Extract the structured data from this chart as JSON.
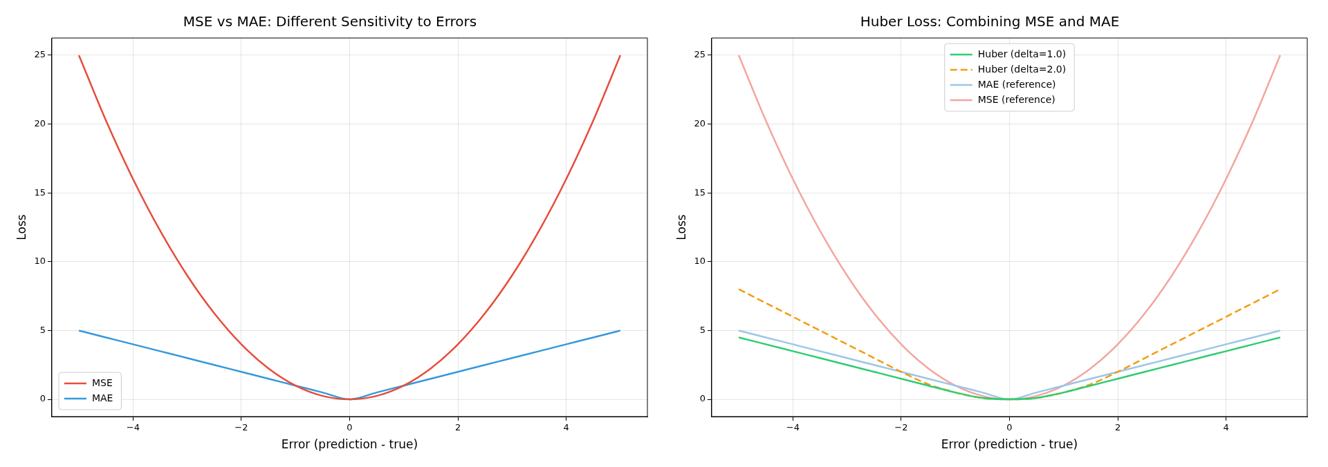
{
  "chart_data": [
    {
      "type": "line",
      "title": "MSE vs MAE: Different Sensitivity to Errors",
      "xlabel": "Error (prediction - true)",
      "ylabel": "Loss",
      "x": [
        -5,
        -4.5,
        -4,
        -3.5,
        -3,
        -2.5,
        -2,
        -1.5,
        -1,
        -0.5,
        0,
        0.5,
        1,
        1.5,
        2,
        2.5,
        3,
        3.5,
        4,
        4.5,
        5
      ],
      "series": [
        {
          "name": "MSE",
          "color": "#e74c3c",
          "values": [
            25,
            20.25,
            16,
            12.25,
            9,
            6.25,
            4,
            2.25,
            1,
            0.25,
            0,
            0.25,
            1,
            2.25,
            4,
            6.25,
            9,
            12.25,
            16,
            20.25,
            25
          ]
        },
        {
          "name": "MAE",
          "color": "#3498db",
          "values": [
            5,
            4.5,
            4,
            3.5,
            3,
            2.5,
            2,
            1.5,
            1,
            0.5,
            0,
            0.5,
            1,
            1.5,
            2,
            2.5,
            3,
            3.5,
            4,
            4.5,
            5
          ]
        }
      ],
      "xlim": [
        -5.5,
        5.5
      ],
      "xticks": [
        -4,
        -2,
        0,
        2,
        4
      ],
      "ylim": [
        -1.25,
        26.25
      ],
      "yticks": [
        0,
        5,
        10,
        15,
        20,
        25
      ],
      "grid": true,
      "legend": "bottom left",
      "marker": "none",
      "line_style": "solid"
    },
    {
      "type": "line",
      "title": "Huber Loss: Combining MSE and MAE",
      "xlabel": "Error (prediction - true)",
      "ylabel": "Loss",
      "x": [
        -5,
        -4.5,
        -4,
        -3.5,
        -3,
        -2.5,
        -2,
        -1.5,
        -1,
        -0.5,
        0,
        0.5,
        1,
        1.5,
        2,
        2.5,
        3,
        3.5,
        4,
        4.5,
        5
      ],
      "series": [
        {
          "name": "Huber (delta=1.0)",
          "color": "#2ecc71",
          "values": [
            4.5,
            4,
            3.5,
            3,
            2.5,
            2,
            1.5,
            1,
            0.5,
            0.1,
            0,
            0.1,
            0.5,
            1,
            1.5,
            2,
            2.5,
            3,
            3.5,
            4,
            4.5
          ]
        },
        {
          "name": "Huber (delta=2.0)",
          "color": "#f39c12",
          "line_style": "dashed",
          "values": [
            8,
            7,
            6,
            5,
            4,
            3,
            2,
            1.1,
            0.5,
            0.1,
            0,
            0.1,
            0.5,
            1.1,
            2,
            3,
            4,
            5,
            6,
            7,
            8
          ]
        },
        {
          "name": "MAE (reference)",
          "color": "#9ac6e8",
          "values": [
            5,
            4.5,
            4,
            3.5,
            3,
            2.5,
            2,
            1.5,
            1,
            0.5,
            0,
            0.5,
            1,
            1.5,
            2,
            2.5,
            3,
            3.5,
            4,
            4.5,
            5
          ]
        },
        {
          "name": "MSE (reference)",
          "color": "#f2a69e",
          "values": [
            25,
            20.25,
            16,
            12.25,
            9,
            6.25,
            4,
            2.25,
            1,
            0.25,
            0,
            0.25,
            1,
            2.25,
            4,
            6.25,
            9,
            12.25,
            16,
            20.25,
            25
          ]
        }
      ],
      "xlim": [
        -5.5,
        5.5
      ],
      "xticks": [
        -4,
        -2,
        0,
        2,
        4
      ],
      "ylim": [
        -1.25,
        26.25
      ],
      "yticks": [
        0,
        5,
        10,
        15,
        20,
        25
      ],
      "grid": true,
      "legend": "top",
      "marker": "none",
      "line_style": "solid"
    }
  ]
}
